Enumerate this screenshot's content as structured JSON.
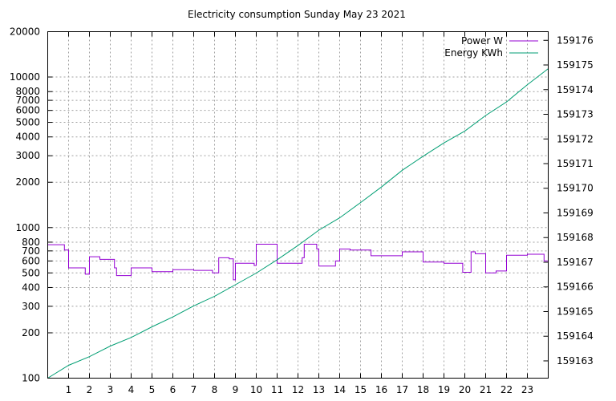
{
  "chart_data": {
    "type": "line",
    "title": "Electricity consumption Sunday May 23 2021",
    "x_axis": {
      "min": 0,
      "max": 24,
      "ticks": [
        1,
        2,
        3,
        4,
        5,
        6,
        7,
        8,
        9,
        10,
        11,
        12,
        13,
        14,
        15,
        16,
        17,
        18,
        19,
        20,
        21,
        22,
        23
      ]
    },
    "y_left": {
      "scale": "log",
      "min": 100,
      "max": 20000,
      "ticks": [
        {
          "value": 100,
          "label": "100"
        },
        {
          "value": 200,
          "label": "200"
        },
        {
          "value": 300,
          "label": "300"
        },
        {
          "value": 400,
          "label": "400"
        },
        {
          "value": 500,
          "label": "500"
        },
        {
          "value": 600,
          "label": "600"
        },
        {
          "value": 700,
          "label": "700"
        },
        {
          "value": 800,
          "label": "800"
        },
        {
          "value": 1000,
          "label": "1000"
        },
        {
          "value": 2000,
          "label": "2000"
        },
        {
          "value": 3000,
          "label": "3000"
        },
        {
          "value": 4000,
          "label": "4000"
        },
        {
          "value": 5000,
          "label": "5000"
        },
        {
          "value": 6000,
          "label": "6000"
        },
        {
          "value": 7000,
          "label": "7000"
        },
        {
          "value": 8000,
          "label": "8000"
        },
        {
          "value": 10000,
          "label": "10000"
        },
        {
          "value": 20000,
          "label": "20000"
        }
      ]
    },
    "y_right": {
      "scale": "linear",
      "min": 159162.3,
      "max": 159176.35,
      "ticks": [
        159163,
        159164,
        159165,
        159166,
        159167,
        159168,
        159169,
        159170,
        159171,
        159172,
        159173,
        159174,
        159175,
        159176
      ]
    },
    "grid": true,
    "legend_position": "top-right",
    "series": [
      {
        "name": "Power W",
        "axis": "left",
        "color": "#9400d3",
        "step": true,
        "x": [
          0,
          0.5,
          0.8,
          1.0,
          1.5,
          1.8,
          2.0,
          2.5,
          3.0,
          3.2,
          3.3,
          4.0,
          4.5,
          5.0,
          5.5,
          6.0,
          6.5,
          7.0,
          7.5,
          7.9,
          8.0,
          8.2,
          8.7,
          8.9,
          9.0,
          9.5,
          9.9,
          10.0,
          10.5,
          10.7,
          11.0,
          11.5,
          12.0,
          12.2,
          12.3,
          12.7,
          12.9,
          13.0,
          13.5,
          13.8,
          14.0,
          14.5,
          15.0,
          15.5,
          16.0,
          16.5,
          17.0,
          17.5,
          18.0,
          18.5,
          19.0,
          19.5,
          19.9,
          20.0,
          20.3,
          20.5,
          20.8,
          21.0,
          21.5,
          21.9,
          22.0,
          22.5,
          23.0,
          23.5,
          23.8,
          24.0
        ],
        "y": [
          770,
          770,
          710,
          540,
          540,
          490,
          640,
          615,
          615,
          540,
          480,
          540,
          540,
          510,
          510,
          525,
          525,
          520,
          520,
          500,
          500,
          630,
          620,
          450,
          580,
          580,
          560,
          775,
          775,
          775,
          580,
          580,
          580,
          630,
          775,
          775,
          720,
          555,
          555,
          600,
          720,
          710,
          710,
          650,
          650,
          650,
          690,
          690,
          590,
          590,
          580,
          580,
          505,
          505,
          690,
          670,
          670,
          500,
          515,
          515,
          655,
          655,
          665,
          665,
          600,
          600
        ]
      },
      {
        "name": "Energy KWh",
        "axis": "right",
        "color": "#009e73",
        "step": false,
        "x": [
          0,
          1,
          2,
          3,
          4,
          5,
          6,
          7,
          8,
          9,
          10,
          11,
          12,
          13,
          14,
          15,
          16,
          17,
          18,
          19,
          20,
          21,
          22,
          23,
          24
        ],
        "y": [
          159162.3,
          159162.82,
          159163.17,
          159163.6,
          159163.95,
          159164.38,
          159164.78,
          159165.23,
          159165.62,
          159166.09,
          159166.56,
          159167.1,
          159167.68,
          159168.3,
          159168.8,
          159169.42,
          159170.05,
          159170.73,
          159171.3,
          159171.84,
          159172.32,
          159172.95,
          159173.5,
          159174.2,
          159174.85
        ]
      }
    ]
  }
}
